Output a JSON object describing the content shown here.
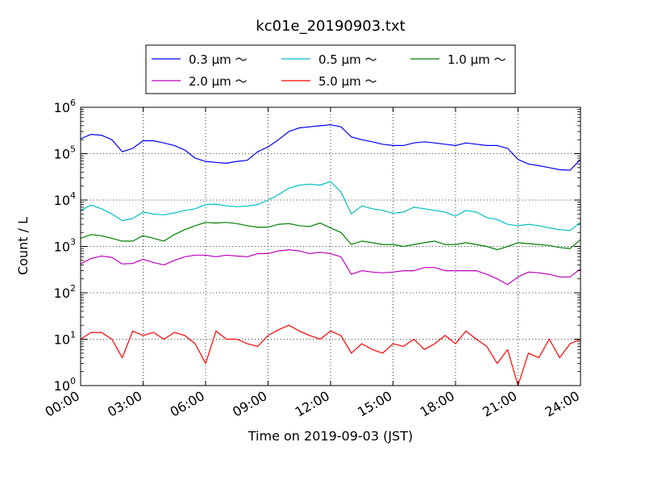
{
  "chart_data": {
    "type": "line",
    "title": "kc01e_20190903.txt",
    "xlabel": "Time on 2019-09-03 (JST)",
    "ylabel": "Count / L",
    "xlim": [
      0,
      24
    ],
    "ylim": [
      1,
      1000000
    ],
    "yscale": "log",
    "grid": true,
    "legend_position": "top-center",
    "x_tick_labels": [
      "00:00",
      "03:00",
      "06:00",
      "09:00",
      "12:00",
      "15:00",
      "18:00",
      "21:00",
      "24:00"
    ],
    "y_tick_labels": [
      {
        "base": "10",
        "exp": "0"
      },
      {
        "base": "10",
        "exp": "1"
      },
      {
        "base": "10",
        "exp": "2"
      },
      {
        "base": "10",
        "exp": "3"
      },
      {
        "base": "10",
        "exp": "4"
      },
      {
        "base": "10",
        "exp": "5"
      },
      {
        "base": "10",
        "exp": "6"
      }
    ],
    "x": [
      0,
      0.5,
      1,
      1.5,
      2,
      2.5,
      3,
      3.5,
      4,
      4.5,
      5,
      5.5,
      6,
      6.5,
      7,
      7.5,
      8,
      8.5,
      9,
      9.5,
      10,
      10.5,
      11,
      11.5,
      12,
      12.5,
      13,
      13.5,
      14,
      14.5,
      15,
      15.5,
      16,
      16.5,
      17,
      17.5,
      18,
      18.5,
      19,
      19.5,
      20,
      20.5,
      21,
      21.5,
      22,
      22.5,
      23,
      23.5,
      24
    ],
    "series": [
      {
        "name": "0.3 μm ～",
        "color": "#0000ff",
        "values": [
          210000,
          260000,
          250000,
          200000,
          110000,
          130000,
          190000,
          190000,
          170000,
          150000,
          120000,
          80000,
          68000,
          65000,
          62000,
          68000,
          72000,
          110000,
          140000,
          200000,
          300000,
          360000,
          380000,
          400000,
          420000,
          380000,
          230000,
          200000,
          180000,
          160000,
          150000,
          150000,
          170000,
          180000,
          170000,
          160000,
          150000,
          170000,
          160000,
          150000,
          150000,
          130000,
          75000,
          60000,
          55000,
          50000,
          45000,
          44000,
          75000
        ]
      },
      {
        "name": "0.5 μm ～",
        "color": "#00bfbf",
        "values": [
          6000,
          7800,
          6500,
          5000,
          3600,
          4000,
          5500,
          5000,
          4800,
          5300,
          6000,
          6500,
          8000,
          8200,
          7500,
          7200,
          7400,
          8000,
          10000,
          13000,
          18000,
          21000,
          22000,
          21000,
          25000,
          15000,
          5000,
          7500,
          6500,
          6000,
          5200,
          5500,
          7000,
          6500,
          6000,
          5500,
          4500,
          6000,
          5500,
          4200,
          3800,
          3000,
          2800,
          3000,
          2800,
          2500,
          2300,
          2200,
          3300
        ]
      },
      {
        "name": "1.0 μm ～",
        "color": "#008000",
        "values": [
          1500,
          1800,
          1700,
          1500,
          1300,
          1300,
          1700,
          1500,
          1300,
          1800,
          2300,
          2800,
          3300,
          3200,
          3300,
          3100,
          2800,
          2600,
          2600,
          3000,
          3100,
          2800,
          2700,
          3200,
          2500,
          2000,
          1100,
          1300,
          1200,
          1100,
          1100,
          1000,
          1100,
          1200,
          1300,
          1100,
          1100,
          1200,
          1100,
          1000,
          850,
          1000,
          1200,
          1150,
          1100,
          1050,
          950,
          900,
          1400
        ]
      },
      {
        "name": "2.0 μm ～",
        "color": "#bf00bf",
        "values": [
          420,
          550,
          620,
          580,
          420,
          430,
          530,
          450,
          400,
          500,
          600,
          650,
          650,
          600,
          650,
          620,
          600,
          700,
          700,
          800,
          850,
          800,
          700,
          750,
          700,
          600,
          250,
          300,
          280,
          270,
          280,
          300,
          300,
          350,
          350,
          300,
          300,
          300,
          300,
          250,
          200,
          150,
          220,
          280,
          270,
          250,
          220,
          220,
          330
        ]
      },
      {
        "name": "5.0 μm ～",
        "color": "#ff0000",
        "values": [
          10,
          14,
          14,
          10,
          4,
          15,
          12,
          14,
          10,
          14,
          12,
          8,
          3,
          15,
          10,
          10,
          8,
          7,
          12,
          16,
          20,
          15,
          12,
          10,
          15,
          12,
          5,
          8,
          6,
          5,
          8,
          7,
          10,
          6,
          8,
          12,
          8,
          15,
          10,
          7,
          3,
          6,
          1,
          5,
          4,
          10,
          4,
          8,
          10
        ]
      }
    ]
  }
}
